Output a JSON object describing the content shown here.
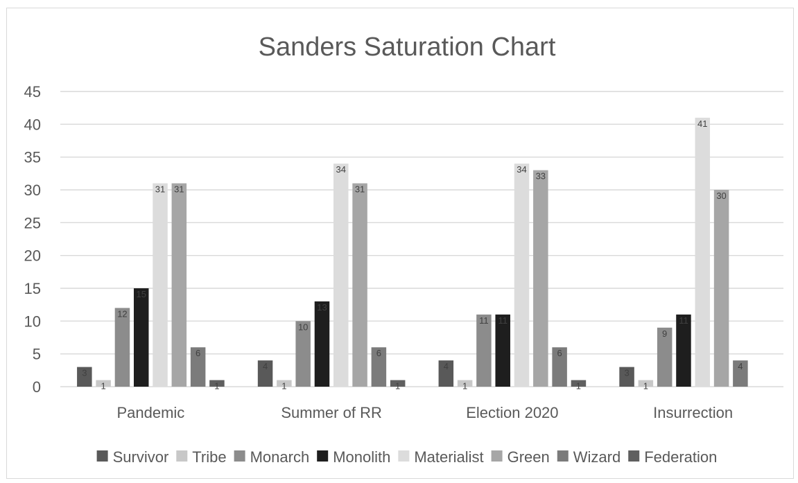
{
  "chart_data": {
    "type": "bar",
    "title": "Sanders Saturation Chart",
    "categories": [
      "Pandemic",
      "Summer of RR",
      "Election 2020",
      "Insurrection"
    ],
    "ylim": [
      0,
      45
    ],
    "yticks": [
      "0",
      "5",
      "10",
      "15",
      "20",
      "25",
      "30",
      "35",
      "40",
      "45"
    ],
    "grid": true,
    "legend_position": "bottom",
    "series": [
      {
        "name": "Survivor",
        "color": "#595959",
        "values": [
          3,
          4,
          4,
          3
        ]
      },
      {
        "name": "Tribe",
        "color": "#c8c8c8",
        "values": [
          1,
          1,
          1,
          1
        ]
      },
      {
        "name": "Monarch",
        "color": "#8c8c8c",
        "values": [
          12,
          10,
          11,
          9
        ]
      },
      {
        "name": "Monolith",
        "color": "#1e1e1e",
        "values": [
          15,
          13,
          11,
          11
        ]
      },
      {
        "name": "Materialist",
        "color": "#dcdcdc",
        "values": [
          31,
          34,
          34,
          41
        ]
      },
      {
        "name": "Green",
        "color": "#a6a6a6",
        "values": [
          31,
          31,
          33,
          30
        ]
      },
      {
        "name": "Wizard",
        "color": "#7b7b7b",
        "values": [
          6,
          6,
          6,
          4
        ]
      },
      {
        "name": "Federation",
        "color": "#5f5f5f",
        "values": [
          1,
          1,
          1,
          null
        ]
      }
    ]
  }
}
